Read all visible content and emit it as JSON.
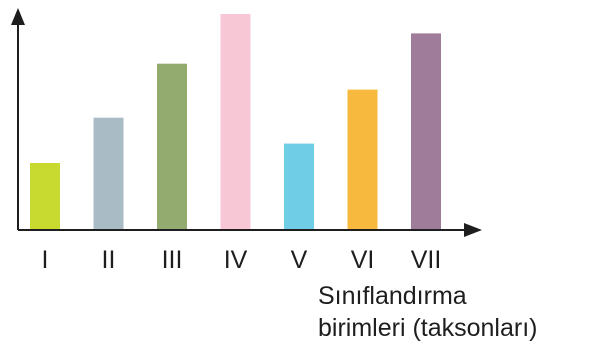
{
  "chart_data": {
    "type": "bar",
    "categories": [
      "I",
      "II",
      "III",
      "IV",
      "V",
      "VI",
      "VII"
    ],
    "values": [
      31,
      52,
      77,
      100,
      40,
      65,
      91
    ],
    "colors": [
      "#c8d92f",
      "#a9bcc6",
      "#93ab6e",
      "#f8c7d5",
      "#70cde6",
      "#f7ba3f",
      "#9e7c9a"
    ],
    "ylim": [
      0,
      100
    ],
    "title": "",
    "ylabel": "",
    "xlabel": [
      "Sınıflandırma",
      "birimleri (taksonları)"
    ],
    "grid": false,
    "legend": "none"
  }
}
